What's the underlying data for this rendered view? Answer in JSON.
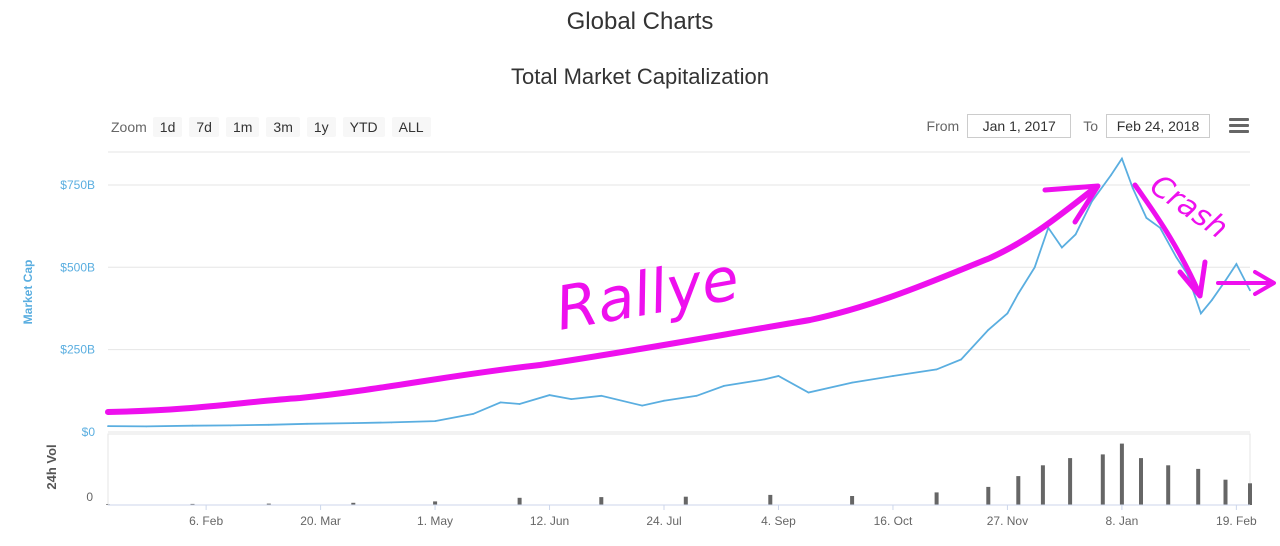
{
  "page": {
    "title": "Global Charts",
    "chart_title": "Total Market Capitalization"
  },
  "toolbar": {
    "zoom_label": "Zoom",
    "zoom_buttons": [
      "1d",
      "7d",
      "1m",
      "3m",
      "1y",
      "YTD",
      "ALL"
    ],
    "from_label": "From",
    "from_value": "Jan 1, 2017",
    "to_label": "To",
    "to_value": "Feb 24, 2018"
  },
  "colors": {
    "series": "#5aaee0",
    "volume": "#666666",
    "annotation": "#ee10ee",
    "axis_text": "#666666",
    "market_cap_axis": "#5aaee0"
  },
  "annotations": {
    "rally": "Rallye",
    "crash": "Crash"
  },
  "chart_data": {
    "type": "line",
    "title": "Total Market Capitalization",
    "x_ticks": [
      "6. Feb",
      "20. Mar",
      "1. May",
      "12. Jun",
      "24. Jul",
      "4. Sep",
      "16. Oct",
      "27. Nov",
      "8. Jan",
      "19. Feb"
    ],
    "y_ticks": [
      "$0",
      "$250B",
      "$500B",
      "$750B"
    ],
    "ylabel": "Market Cap",
    "ylim": [
      0,
      850
    ],
    "xlim": [
      "2017-01-01",
      "2018-02-24"
    ],
    "legend": "none",
    "grid": true,
    "series": [
      {
        "x": [
          "2017-01-01",
          "2017-01-15",
          "2017-02-01",
          "2017-02-15",
          "2017-03-01",
          "2017-03-15",
          "2017-04-01",
          "2017-04-15",
          "2017-05-01",
          "2017-05-15",
          "2017-05-25",
          "2017-06-01",
          "2017-06-12",
          "2017-06-20",
          "2017-07-01",
          "2017-07-16",
          "2017-07-24",
          "2017-08-05",
          "2017-08-15",
          "2017-08-30",
          "2017-09-04",
          "2017-09-15",
          "2017-10-01",
          "2017-10-16",
          "2017-11-01",
          "2017-11-10",
          "2017-11-20",
          "2017-11-27",
          "2017-12-01",
          "2017-12-07",
          "2017-12-12",
          "2017-12-17",
          "2017-12-22",
          "2017-12-28",
          "2018-01-04",
          "2018-01-08",
          "2018-01-12",
          "2018-01-17",
          "2018-01-22",
          "2018-01-28",
          "2018-02-01",
          "2018-02-06",
          "2018-02-10",
          "2018-02-15",
          "2018-02-19",
          "2018-02-24"
        ],
        "y": [
          18,
          17,
          19,
          20,
          22,
          25,
          27,
          29,
          33,
          55,
          90,
          85,
          112,
          100,
          110,
          80,
          95,
          110,
          140,
          160,
          170,
          120,
          150,
          170,
          190,
          220,
          310,
          360,
          420,
          500,
          620,
          560,
          600,
          700,
          780,
          830,
          740,
          650,
          620,
          530,
          480,
          360,
          400,
          460,
          510,
          430
        ]
      }
    ],
    "volume": {
      "ylabel": "24h Vol",
      "y_ticks": [
        "0"
      ],
      "x": [
        "2017-01-01",
        "2017-02-01",
        "2017-03-01",
        "2017-04-01",
        "2017-05-01",
        "2017-06-01",
        "2017-07-01",
        "2017-08-01",
        "2017-09-01",
        "2017-10-01",
        "2017-11-01",
        "2017-11-20",
        "2017-12-01",
        "2017-12-10",
        "2017-12-20",
        "2018-01-01",
        "2018-01-08",
        "2018-01-15",
        "2018-01-25",
        "2018-02-05",
        "2018-02-15",
        "2018-02-24"
      ],
      "y": [
        0.2,
        0.3,
        0.4,
        0.6,
        1.0,
        2.0,
        2.2,
        2.3,
        2.8,
        2.5,
        3.5,
        5,
        8,
        11,
        13,
        14,
        17,
        13,
        11,
        10,
        7,
        6
      ]
    }
  }
}
